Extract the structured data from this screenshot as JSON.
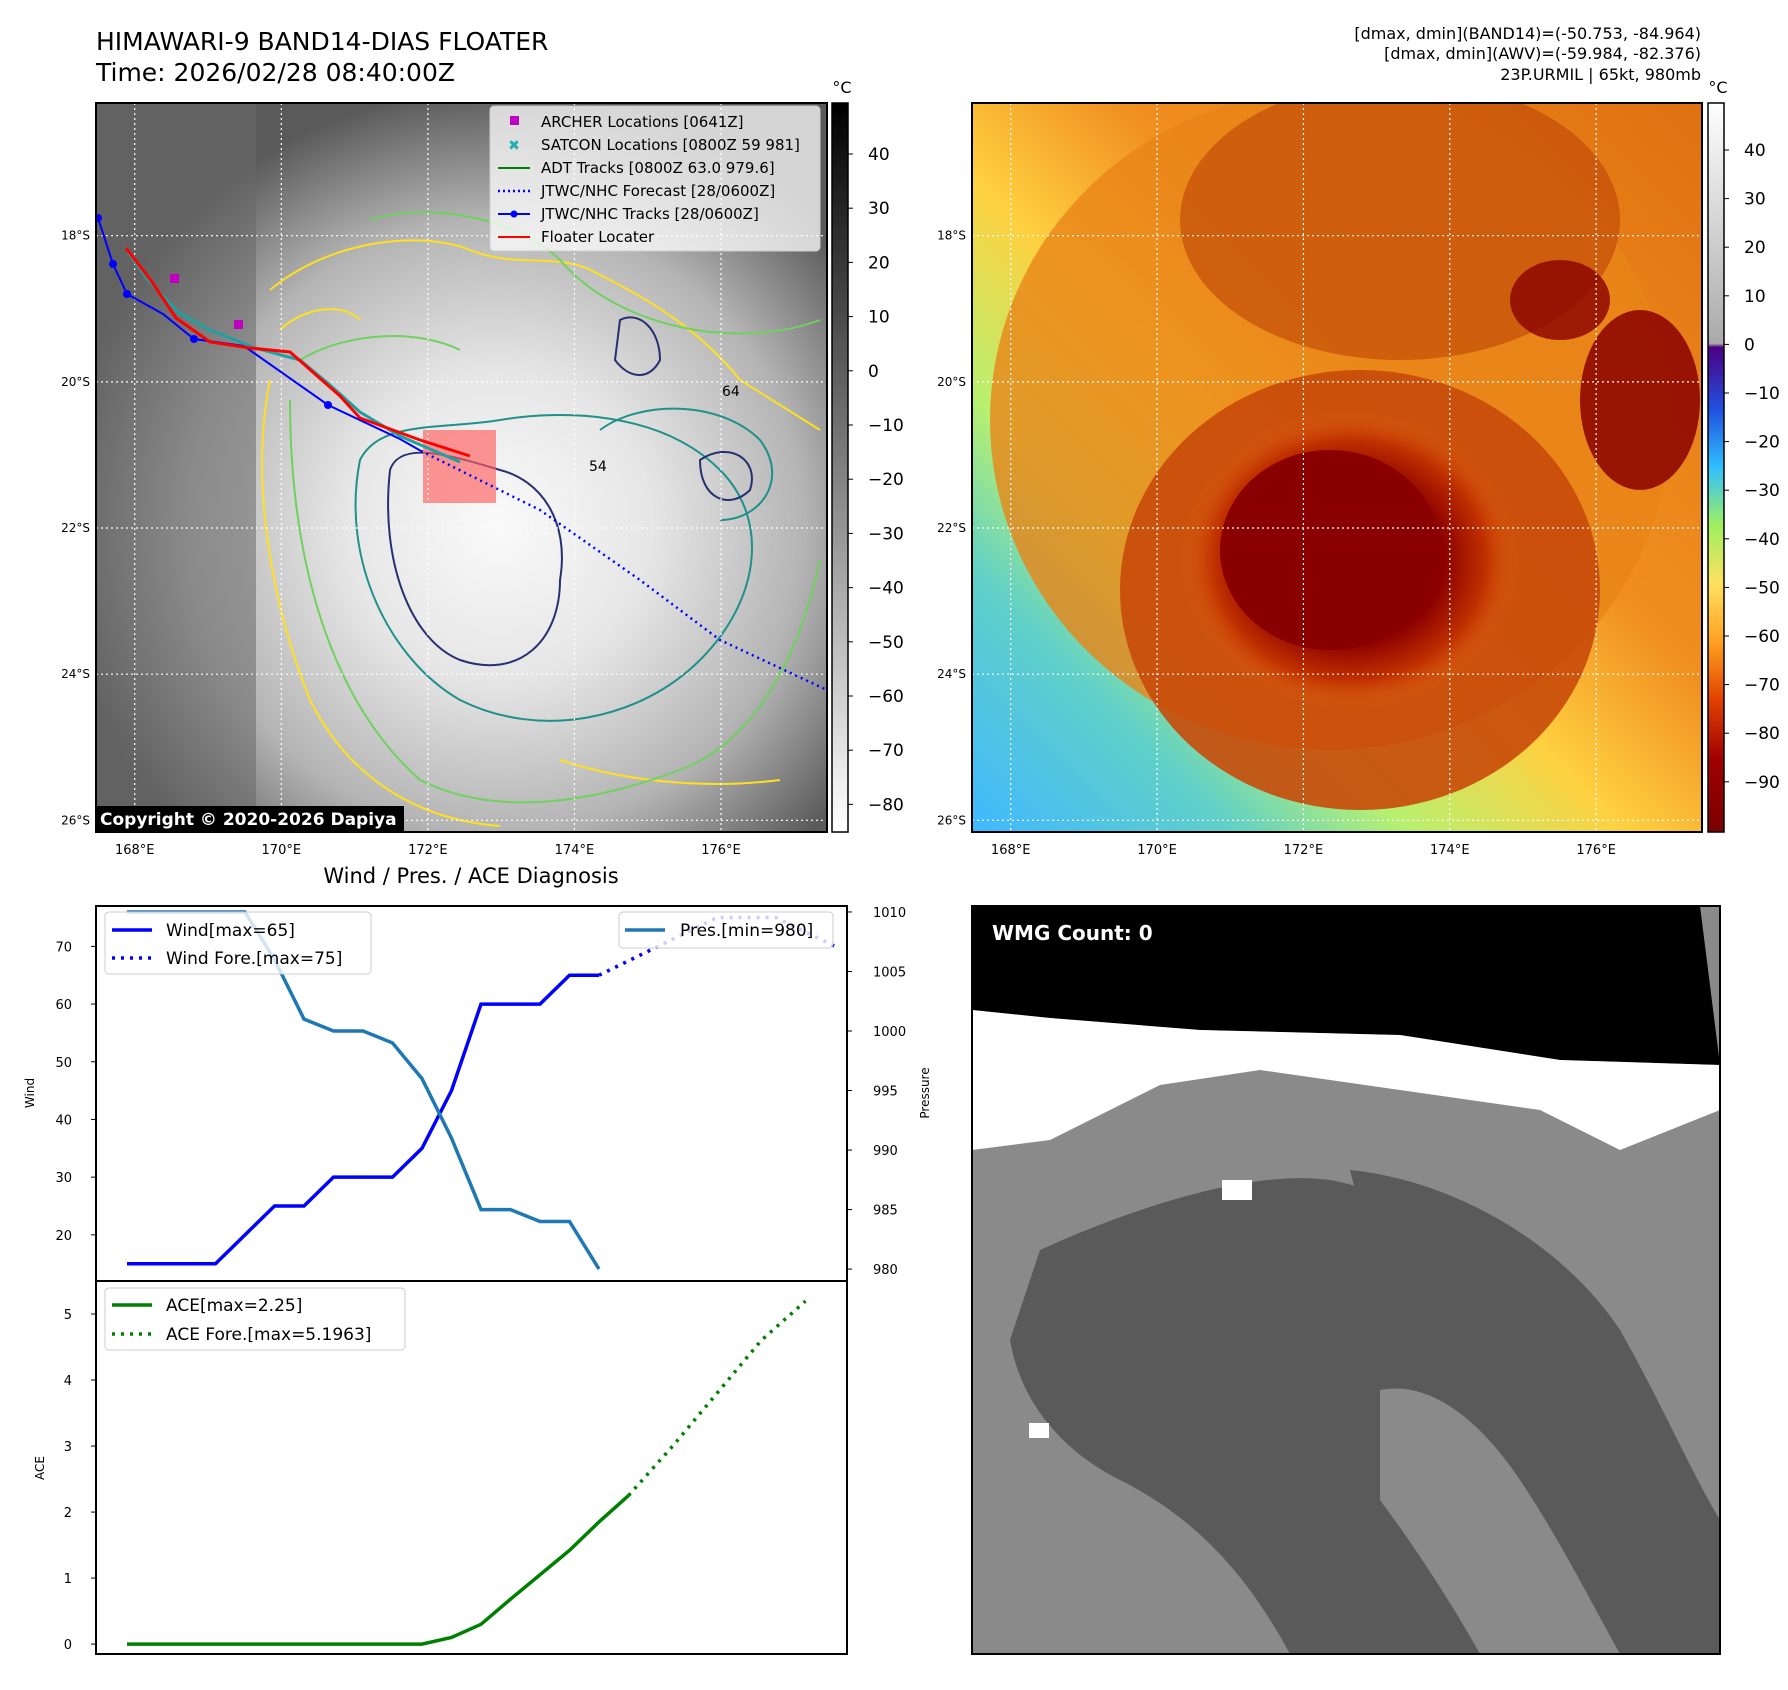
{
  "header": {
    "title_line1": "HIMAWARI-9 BAND14-DIAS FLOATER",
    "title_line2": "Time: 2026/02/28 08:40:00Z",
    "stats_line1": "[dmax, dmin](BAND14)=(-50.753, -84.964)",
    "stats_line2": "[dmax, dmin](AWV)=(-59.984, -82.376)",
    "stats_line3": "23P.URMIL | 65kt, 980mb"
  },
  "maps": {
    "lon_ticks": [
      "168°E",
      "170°E",
      "172°E",
      "174°E",
      "176°E"
    ],
    "lat_ticks": [
      "18°S",
      "20°S",
      "22°S",
      "24°S",
      "26°S"
    ],
    "copyright": "Copyright © 2020-2026 Dapiya",
    "left_colorbar": {
      "unit": "°C",
      "ticks": [
        "40",
        "30",
        "20",
        "10",
        "0",
        "−10",
        "−20",
        "−30",
        "−40",
        "−50",
        "−60",
        "−70",
        "−80"
      ]
    },
    "right_colorbar": {
      "unit": "°C",
      "ticks": [
        "40",
        "30",
        "20",
        "10",
        "0",
        "−10",
        "−20",
        "−30",
        "−40",
        "−50",
        "−60",
        "−70",
        "−80",
        "−90"
      ]
    },
    "legend": [
      {
        "label": "ARCHER Locations [0641Z]",
        "color": "#c000c0",
        "marker": "square"
      },
      {
        "label": "SATCON Locations [0800Z 59 981]",
        "color": "#20b0b0",
        "marker": "x"
      },
      {
        "label": "ADT Tracks [0800Z 63.0 979.6]",
        "color": "#008000",
        "marker": "line"
      },
      {
        "label": "JTWC/NHC Forecast [28/0600Z]",
        "color": "#0000ff",
        "marker": "dotted"
      },
      {
        "label": "JTWC/NHC Tracks [28/0600Z]",
        "color": "#0000ff",
        "marker": "line-dot"
      },
      {
        "label": "Floater Locater",
        "color": "#ff0000",
        "marker": "line"
      }
    ],
    "contour_labels": [
      "54",
      "64"
    ]
  },
  "wmg": {
    "label": "WMG Count: 0"
  },
  "chart_data": [
    {
      "type": "line",
      "title": "Wind / Pres. / ACE Diagnosis",
      "ylabel": "Wind",
      "y2label": "Pressure",
      "ylim": [
        12,
        77
      ],
      "y2lim": [
        979,
        1010.5
      ],
      "yticks": [
        20,
        30,
        40,
        50,
        60,
        70
      ],
      "y2ticks": [
        980,
        985,
        990,
        995,
        1000,
        1005,
        1010
      ],
      "series": [
        {
          "name": "Wind[max=65]",
          "axis": "left",
          "color": "#0000ff",
          "style": "solid",
          "values": [
            15,
            15,
            15,
            15,
            20,
            25,
            25,
            30,
            30,
            30,
            35,
            45,
            60,
            60,
            60,
            65,
            65
          ]
        },
        {
          "name": "Wind Fore.[max=75]",
          "axis": "left",
          "color": "#0000ff",
          "style": "dotted",
          "values": [
            65,
            70,
            75,
            75,
            70
          ]
        },
        {
          "name": "Pres.[min=980]",
          "axis": "right",
          "color": "#1f77b4",
          "style": "solid",
          "values": [
            1010,
            1010,
            1010,
            1010,
            1010,
            1006,
            1001,
            1000,
            1000,
            999,
            996,
            991,
            985,
            985,
            984,
            984,
            980
          ]
        }
      ]
    },
    {
      "type": "line",
      "ylabel": "ACE",
      "ylim": [
        -0.15,
        5.5
      ],
      "yticks": [
        0,
        1,
        2,
        3,
        4,
        5
      ],
      "series": [
        {
          "name": "ACE[max=2.25]",
          "color": "#008000",
          "style": "solid",
          "values": [
            0,
            0,
            0,
            0,
            0,
            0,
            0,
            0,
            0,
            0,
            0,
            0.1,
            0.3,
            0.68,
            1.05,
            1.42,
            1.85,
            2.25
          ]
        },
        {
          "name": "ACE Fore.[max=5.1963]",
          "color": "#008000",
          "style": "dotted",
          "values": [
            2.25,
            3.0,
            3.8,
            4.6,
            5.1963
          ]
        }
      ]
    }
  ]
}
